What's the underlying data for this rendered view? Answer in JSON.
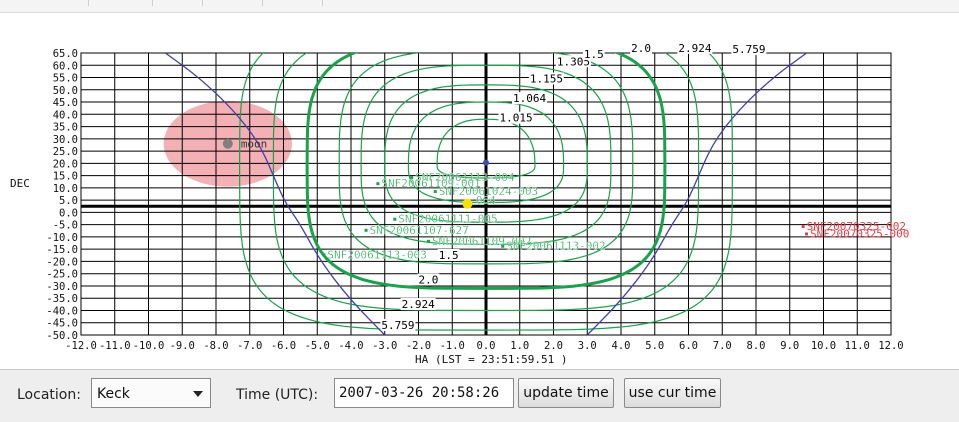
{
  "chart_data": {
    "type": "line",
    "title": "",
    "xlabel": "HA",
    "lst": "(LST = 23:51:59.51 )",
    "ylabel": "DEC",
    "xlim": [
      -12.0,
      12.0
    ],
    "ylim": [
      -50.0,
      65.0
    ],
    "grid": true,
    "x_ticks": [
      "-12.0",
      "-11.0",
      "-10.0",
      "-9.0",
      "-8.0",
      "-7.0",
      "-6.0",
      "-5.0",
      "-4.0",
      "-3.0",
      "-2.0",
      "-1.0",
      "0.0",
      "1.0",
      "2.0",
      "3.0",
      "4.0",
      "5.0",
      "6.0",
      "7.0",
      "8.0",
      "9.0",
      "10.0",
      "11.0",
      "12.0"
    ],
    "y_ticks": [
      "65.0",
      "60.0",
      "55.0",
      "50.0",
      "45.0",
      "40.0",
      "35.0",
      "30.0",
      "25.0",
      "20.0",
      "15.0",
      "10.0",
      "5.0",
      "0.0",
      "-5.0",
      "-10.0",
      "-15.0",
      "-20.0",
      "-25.0",
      "-30.0",
      "-35.0",
      "-40.0",
      "-45.0",
      "-50.0"
    ],
    "horizon_curve": {
      "color": "#4040b0",
      "left": [
        [
          -9.5,
          65
        ],
        [
          -8.5,
          55
        ],
        [
          -7.5,
          42
        ],
        [
          -6.7,
          28
        ],
        [
          -6.15,
          10
        ],
        [
          -5.9,
          3
        ],
        [
          -5.5,
          -5
        ],
        [
          -4.9,
          -20
        ],
        [
          -4.0,
          -36
        ],
        [
          -3.0,
          -50
        ]
      ],
      "right": [
        [
          9.5,
          65
        ],
        [
          8.5,
          55
        ],
        [
          7.5,
          42
        ],
        [
          6.7,
          28
        ],
        [
          6.15,
          10
        ],
        [
          5.9,
          3
        ],
        [
          5.5,
          -5
        ],
        [
          4.9,
          -20
        ],
        [
          4.0,
          -36
        ],
        [
          3.0,
          -50
        ]
      ]
    },
    "airmass_contours": [
      {
        "label": "1.015",
        "hw": 1.45,
        "top": 38,
        "bot": 14,
        "thick": false,
        "lx": 0.4,
        "ly": 37
      },
      {
        "label": "1.064",
        "hw": 2.3,
        "top": 45,
        "bot": 4,
        "thick": false,
        "lx": 0.8,
        "ly": 45
      },
      {
        "label": "1.155",
        "hw": 3.0,
        "top": 52,
        "bot": -4,
        "thick": false,
        "lx": 1.3,
        "ly": 53
      },
      {
        "label": "1.305",
        "hw": 3.7,
        "top": 60,
        "bot": -13,
        "thick": false,
        "lx": 2.1,
        "ly": 60
      },
      {
        "label": "1.5",
        "hw": 4.35,
        "top": 66,
        "bot": -21,
        "thick": false,
        "lx": 2.9,
        "ly": 63
      },
      {
        "label": "2.0",
        "hw": 5.3,
        "top": 70,
        "bot": -31,
        "thick": true,
        "lx": 4.3,
        "ly": 65.5
      },
      {
        "label": "2.924",
        "hw": 6.3,
        "top": 74,
        "bot": -40,
        "thick": false,
        "lx": 5.7,
        "ly": 65.5
      },
      {
        "label": "5.759",
        "hw": 7.3,
        "top": 78,
        "bot": -48,
        "thick": false,
        "lx": 7.3,
        "ly": 65
      }
    ],
    "lower_contour_labels": [
      {
        "text": "1.5",
        "x": -1.4,
        "y": -19
      },
      {
        "text": "2.0",
        "x": -2.0,
        "y": -29
      },
      {
        "text": "2.924",
        "x": -2.5,
        "y": -39
      },
      {
        "text": "5.759",
        "x": -3.1,
        "y": -47.5
      }
    ],
    "moon": {
      "label": "moon",
      "x": -7.65,
      "y": 28.0,
      "radius_ha": 1.9,
      "radius_dec": 17.5
    },
    "zenith": {
      "x": 0.0,
      "y": 20.3
    },
    "sun_marker": {
      "x": -0.55,
      "y": 3.5
    },
    "targets_green": [
      {
        "label": "SNF20061113-004",
        "x": -2.1,
        "y": 14
      },
      {
        "label": "SNF20061109-001",
        "x": -3.1,
        "y": 11.5
      },
      {
        "label": "SNF20061024-003",
        "x": -1.4,
        "y": 8.3
      },
      {
        "label": "064",
        "x": -0.3,
        "y": 4.6
      },
      {
        "label": "SNF20061111-005",
        "x": -2.6,
        "y": -3
      },
      {
        "label": "SNF20061107-627",
        "x": -3.45,
        "y": -7.5
      },
      {
        "label": "SNF20061109-002",
        "x": -1.6,
        "y": -12
      },
      {
        "label": "SNF20061113-002",
        "x": 0.6,
        "y": -14
      },
      {
        "label": "SNF20061113-003",
        "x": -4.7,
        "y": -17.5
      }
    ],
    "targets_red": [
      {
        "label": "SNF20070325-002",
        "x": 9.5,
        "y": -6
      },
      {
        "label": "SNF20070325-000",
        "x": 9.6,
        "y": -9
      }
    ],
    "colors": {
      "grid": "#000000",
      "contour": "#19a24a",
      "contour_label": "#000000",
      "moon_fill": "#f2a9ae",
      "moon_dot": "#808080",
      "horizon": "#4040b0",
      "red": "#e0404a",
      "zenith": "#3a4fb0",
      "sun": "#f4e200"
    }
  },
  "controls": {
    "location_label": "Location:",
    "location_value": "Keck",
    "time_label": "Time (UTC):",
    "time_value": "2007-03-26 20:58:26",
    "update_button": "update time",
    "cur_button": "use cur time"
  }
}
